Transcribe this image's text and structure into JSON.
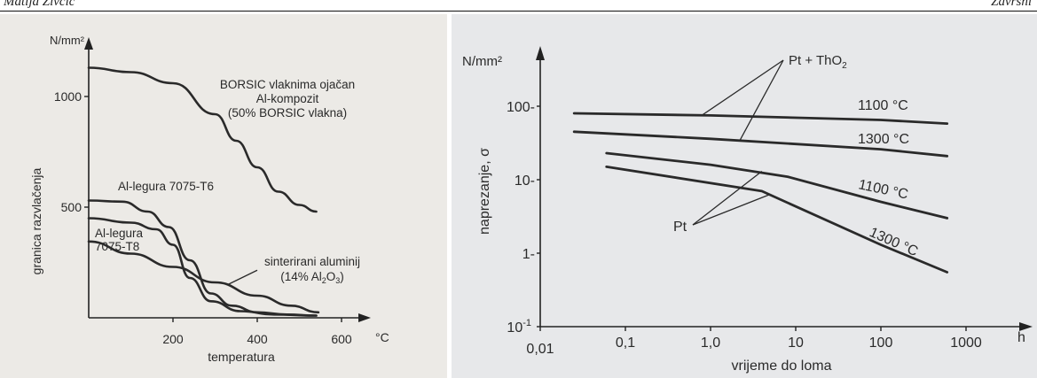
{
  "header": {
    "left": "Matija Zivcic",
    "right": "Zavrsni"
  },
  "chart_data": [
    {
      "type": "line",
      "xlabel": "temperatura",
      "ylabel": "granica razvlačenja",
      "x_unit": "°C",
      "y_unit": "N/mm²",
      "xlim": [
        0,
        600
      ],
      "ylim": [
        0,
        1200
      ],
      "x_ticks": [
        "200",
        "400",
        "600"
      ],
      "y_ticks": [
        "500",
        "1000"
      ],
      "series": [
        {
          "name": "BORSIC vlaknima ojačan Al-kompozit (50% BORSIC vlakna)",
          "points": [
            [
              0,
              1130
            ],
            [
              100,
              1110
            ],
            [
              200,
              1060
            ],
            [
              300,
              920
            ],
            [
              350,
              800
            ],
            [
              400,
              680
            ],
            [
              450,
              570
            ],
            [
              500,
              510
            ],
            [
              540,
              480
            ]
          ]
        },
        {
          "name": "Al-legura 7075-T6",
          "points": [
            [
              0,
              530
            ],
            [
              80,
              525
            ],
            [
              140,
              480
            ],
            [
              190,
              410
            ],
            [
              240,
              260
            ],
            [
              290,
              110
            ],
            [
              340,
              55
            ],
            [
              400,
              25
            ],
            [
              470,
              15
            ],
            [
              540,
              10
            ]
          ]
        },
        {
          "name": "Al-legura 7075-T8",
          "points": [
            [
              0,
              450
            ],
            [
              100,
              430
            ],
            [
              160,
              400
            ],
            [
              200,
              330
            ],
            [
              240,
              180
            ],
            [
              290,
              75
            ],
            [
              360,
              30
            ],
            [
              440,
              15
            ],
            [
              540,
              10
            ]
          ]
        },
        {
          "name": "sinterirani aluminij (14% Al2O3)",
          "points": [
            [
              0,
              345
            ],
            [
              100,
              290
            ],
            [
              200,
              230
            ],
            [
              300,
              160
            ],
            [
              400,
              100
            ],
            [
              480,
              55
            ],
            [
              545,
              25
            ]
          ]
        }
      ],
      "labels": {
        "borsic1": "BORSIC vlaknima ojačan",
        "borsic2": "Al-kompozit",
        "borsic3": "(50% BORSIC vlakna)",
        "t6": "Al-legura 7075-T6",
        "t8a": "Al-legura",
        "t8b": "7075-T8",
        "sint1": "sinterirani aluminij",
        "sint2a": "(14% Al",
        "sint2b": "2",
        "sint2c": "O",
        "sint2d": "3",
        "sint2e": ")"
      }
    },
    {
      "type": "line",
      "scale": "log-log",
      "xlabel": "vrijeme do loma",
      "ylabel": "naprezanje, σ",
      "x_unit": "h",
      "y_unit": "N/mm²",
      "xlim": [
        0.01,
        1000
      ],
      "ylim": [
        0.1,
        1000
      ],
      "x_ticks": [
        "0,01",
        "0,1",
        "1,0",
        "10",
        "100",
        "1000"
      ],
      "y_ticks": [
        "1-",
        "10-",
        "100-"
      ],
      "y_tick_bottom": {
        "base": "10",
        "exp": "-1"
      },
      "series": [
        {
          "name": "Pt + ThO2 1100 °C",
          "points": [
            [
              0.025,
              80
            ],
            [
              1,
              75
            ],
            [
              100,
              65
            ],
            [
              600,
              58
            ]
          ]
        },
        {
          "name": "Pt + ThO2 1300 °C",
          "points": [
            [
              0.025,
              45
            ],
            [
              1,
              36
            ],
            [
              100,
              26
            ],
            [
              600,
              21
            ]
          ]
        },
        {
          "name": "Pt 1100 °C",
          "points": [
            [
              0.06,
              23
            ],
            [
              1,
              16
            ],
            [
              8,
              11
            ],
            [
              100,
              5
            ],
            [
              600,
              3
            ]
          ]
        },
        {
          "name": "Pt 1300 °C",
          "points": [
            [
              0.06,
              15
            ],
            [
              4,
              7
            ],
            [
              100,
              1.3
            ],
            [
              600,
              0.55
            ]
          ]
        }
      ],
      "labels": {
        "ptTho": "Pt + ThO",
        "ptThoSub": "2",
        "pt": "Pt",
        "t1100a": "1100 °C",
        "t1300a": "1300 °C",
        "t1100b": "1100 °C",
        "t1300b": "1300 °C"
      }
    }
  ]
}
